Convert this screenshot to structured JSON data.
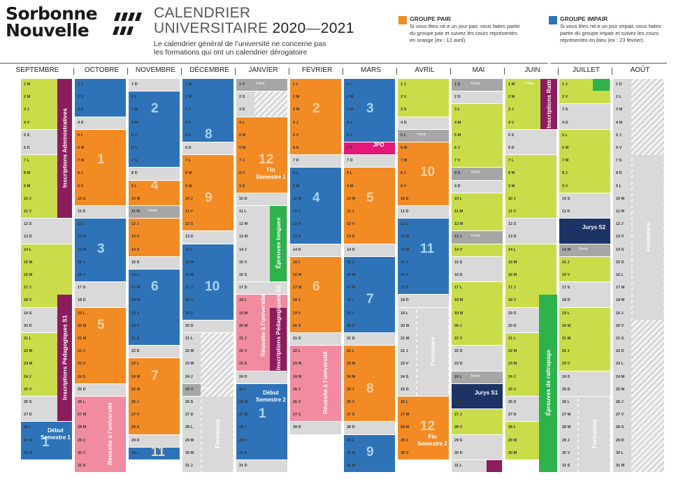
{
  "logo": {
    "line1": "Sorbonne",
    "line2": "Nouvelle"
  },
  "title": {
    "line1": "CALENDRIER",
    "line2": "UNIVERSITAIRE",
    "year_a": "2020",
    "dash": "—",
    "year_b": "2021"
  },
  "subtitle": "Le calendrier général de l’université ne concerne pas les formations qui ont un calendrier dérogatoire",
  "legend": [
    {
      "title": "GROUPE PAIR",
      "desc": "Si vous êtes né.e un jour pair, vous faites partie du groupe pair et suivez les cours représentés en orange (ex : 12 avril).",
      "color": "#f28b24"
    },
    {
      "title": "GROUPE IMPAIR",
      "desc": "Si vous êtes né.e un jour impair, vous faites partie du groupe impair et suivez les cours représentés en bleu (ex : 23 février).",
      "color": "#2e73b8"
    }
  ],
  "colors": {
    "green": "#c9dc4a",
    "grey": "#d9d9d9",
    "orange": "#f28b24",
    "blue": "#2e73b8",
    "pink": "#f18ba0",
    "purple": "#8c1d5c",
    "navy": "#1d3366",
    "darkgrey": "#a6a6a6",
    "brightgreen": "#2db24c",
    "magenta": "#e6167a"
  },
  "months": [
    {
      "name": "SEPTEMBRE",
      "days": [
        "1 M",
        "2 M",
        "3 J",
        "4 V",
        "5 S",
        "6 D",
        "7 L",
        "8 M",
        "9 M",
        "10 J",
        "11 V",
        "12 S",
        "13 D",
        "14 L",
        "15 M",
        "16 M",
        "17 J",
        "18 V",
        "19 S",
        "20 D",
        "21 L",
        "22 M",
        "23 M",
        "24 J",
        "25 V",
        "26 S",
        "27 D",
        "28 L",
        "29 M",
        "30 M"
      ]
    },
    {
      "name": "OCTOBRE",
      "days": [
        "1 J",
        "2 V",
        "3 S",
        "4 D",
        "5 L",
        "6 M",
        "7 M",
        "8 J",
        "9 V",
        "10 S",
        "11 D",
        "12 L",
        "13 M",
        "14 M",
        "15 J",
        "16 V",
        "17 S",
        "18 D",
        "19 L",
        "20 M",
        "21 M",
        "22 J",
        "23 V",
        "24 S",
        "25 D",
        "26 L",
        "27 M",
        "28 M",
        "29 J",
        "30 V",
        "31 S"
      ]
    },
    {
      "name": "NOVEMBRE",
      "days": [
        "1 D",
        "2 L",
        "3 M",
        "4 M",
        "5 J",
        "6 V",
        "7 S",
        "8 D",
        "9 L",
        "10 M",
        "11 M",
        "12 J",
        "13 V",
        "14 S",
        "15 D",
        "16 L",
        "17 M",
        "18 M",
        "19 J",
        "20 V",
        "21 S",
        "22 D",
        "23 L",
        "24 M",
        "25 M",
        "26 J",
        "27 V",
        "28 S",
        "29 D",
        "30 L"
      ]
    },
    {
      "name": "DÉCEMBRE",
      "days": [
        "1 M",
        "2 M",
        "3 J",
        "4 V",
        "5 S",
        "6 D",
        "7 L",
        "8 M",
        "9 M",
        "10 J",
        "11 V",
        "12 S",
        "13 D",
        "14 L",
        "15 M",
        "16 M",
        "17 J",
        "18 V",
        "19 S",
        "20 D",
        "21 L",
        "22 M",
        "23 M",
        "24 J",
        "25 V",
        "26 S",
        "27 D",
        "28 L",
        "29 M",
        "30 M",
        "31 J"
      ]
    },
    {
      "name": "JANVIER",
      "days": [
        "1 V",
        "2 S",
        "3 D",
        "4 L",
        "5 M",
        "6 M",
        "7 J",
        "8 V",
        "9 S",
        "10 D",
        "11 L",
        "12 M",
        "13 M",
        "14 J",
        "15 V",
        "16 S",
        "17 D",
        "18 L",
        "19 M",
        "20 M",
        "21 J",
        "22 V",
        "23 S",
        "24 D",
        "25 L",
        "26 M",
        "27 M",
        "28 J",
        "29 V",
        "30 S",
        "31 D"
      ]
    },
    {
      "name": "FÉVRIER",
      "days": [
        "1 L",
        "2 M",
        "3 M",
        "4 J",
        "5 V",
        "6 S",
        "7 D",
        "8 L",
        "9 M",
        "10 M",
        "11 J",
        "12 V",
        "13 S",
        "14 D",
        "15 L",
        "16 M",
        "17 M",
        "18 J",
        "19 V",
        "20 S",
        "21 D",
        "22 L",
        "23 M",
        "24 M",
        "25 J",
        "26 V",
        "27 S",
        "28 D"
      ]
    },
    {
      "name": "MARS",
      "days": [
        "1 L",
        "2 M",
        "3 M",
        "4 J",
        "5 V",
        "6 S",
        "7 D",
        "8 L",
        "9 M",
        "10 M",
        "11 J",
        "12 V",
        "13 S",
        "14 D",
        "15 L",
        "16 M",
        "17 M",
        "18 J",
        "19 V",
        "20 S",
        "21 D",
        "22 L",
        "23 M",
        "24 M",
        "25 J",
        "26 V",
        "27 S",
        "28 D",
        "29 L",
        "30 M",
        "31 M"
      ]
    },
    {
      "name": "AVRIL",
      "days": [
        "1 J",
        "2 V",
        "3 S",
        "4 D",
        "5 L",
        "6 M",
        "7 M",
        "8 J",
        "9 V",
        "10 S",
        "11 D",
        "12 L",
        "13 M",
        "14 M",
        "15 J",
        "16 V",
        "17 S",
        "18 D",
        "19 L",
        "20 M",
        "21 M",
        "22 J",
        "23 V",
        "24 S",
        "25 D",
        "26 L",
        "27 M",
        "28 M",
        "29 J",
        "30 V"
      ]
    },
    {
      "name": "MAI",
      "days": [
        "1 S",
        "2 D",
        "3 L",
        "4 M",
        "5 M",
        "6 J",
        "7 V",
        "8 S",
        "9 D",
        "10 L",
        "11 M",
        "12 M",
        "13 J",
        "14 V",
        "15 S",
        "16 D",
        "17 L",
        "18 M",
        "19 M",
        "20 J",
        "21 V",
        "22 S",
        "23 D",
        "24 L",
        "25 M",
        "26 M",
        "27 J",
        "28 V",
        "29 S",
        "30 D",
        "31 L"
      ]
    },
    {
      "name": "JUIN",
      "days": [
        "1 M",
        "2 M",
        "3 J",
        "4 V",
        "5 S",
        "6 D",
        "7 L",
        "8 M",
        "9 M",
        "10 J",
        "11 V",
        "12 S",
        "13 D",
        "14 L",
        "15 M",
        "16 M",
        "17 J",
        "18 V",
        "19 S",
        "20 D",
        "21 L",
        "22 M",
        "23 M",
        "24 J",
        "25 V",
        "26 S",
        "27 D",
        "28 L",
        "29 M",
        "30 M"
      ]
    },
    {
      "name": "JUILLET",
      "days": [
        "1 J",
        "2 V",
        "3 S",
        "4 D",
        "5 L",
        "6 M",
        "7 M",
        "8 J",
        "9 V",
        "10 S",
        "11 D",
        "12 L",
        "13 M",
        "14 M",
        "15 J",
        "16 V",
        "17 S",
        "18 D",
        "19 L",
        "20 M",
        "21 M",
        "22 J",
        "23 V",
        "24 S",
        "25 D",
        "26 L",
        "27 M",
        "28 M",
        "29 J",
        "30 V",
        "31 S"
      ]
    },
    {
      "name": "AOÛT",
      "days": [
        "1 D",
        "2 L",
        "3 M",
        "4 M",
        "5 J",
        "6 V",
        "7 S",
        "8 D",
        "9 L",
        "10 M",
        "11 M",
        "12 J",
        "13 V",
        "14 S",
        "15 D",
        "16 L",
        "17 M",
        "18 M",
        "19 J",
        "20 V",
        "21 S",
        "22 D",
        "23 L",
        "24 M",
        "25 M",
        "26 J",
        "27 V",
        "28 S",
        "29 D",
        "30 L",
        "31 M"
      ]
    }
  ],
  "labels": {
    "ferie": "Férié",
    "inscr_admin": "Inscriptions Administratives",
    "inscr_peda_s1": "Inscriptions Pédagogiques S1",
    "debut_s1": "Début Semestre 1",
    "reussite": "Réussite à l’université",
    "fermeture": "Fermeture",
    "fin_s1": "Fin Semestre 1",
    "epreuves_longues": "Épreuves longues",
    "inscr_peda_s2": "Inscriptions Pédagogiques S2",
    "debut_s2": "Début Semestre 2",
    "jpo": "JPO",
    "fin_s2": "Fin Semestre 2",
    "jurys_s1": "Jurys S1",
    "inscr_ratt": "Inscriptions Rattrapages",
    "epreuves_ratt": "Épreuves de rattrapage",
    "jurys_s2": "Jurys S2"
  },
  "week_numbers": [
    "1",
    "2",
    "3",
    "4",
    "5",
    "6",
    "7",
    "8",
    "9",
    "10",
    "11",
    "12",
    "1",
    "2",
    "3",
    "4",
    "5",
    "6",
    "7",
    "8",
    "9",
    "10",
    "11",
    "12"
  ]
}
